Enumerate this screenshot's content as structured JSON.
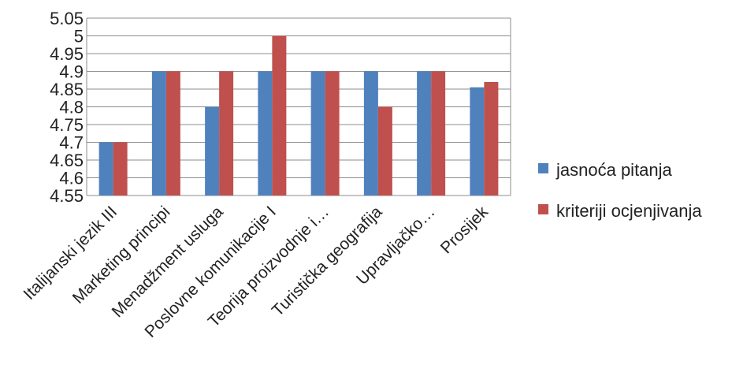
{
  "chart_data": {
    "type": "bar",
    "categories": [
      "Italijanski jezik III",
      "Marketing principi",
      "Menadžment usluga",
      "Poslovne komunikacije I",
      "Teorija proizvodnje i…",
      "Turistička geografija",
      "Upravljačko…",
      "Prosijek"
    ],
    "series": [
      {
        "name": "jasnoća pitanja",
        "color": "#4F81BD",
        "values": [
          4.7,
          4.9,
          4.8,
          4.9,
          4.9,
          4.9,
          4.9,
          4.855
        ]
      },
      {
        "name": "kriteriji ocjenjivanja",
        "color": "#C0504D",
        "values": [
          4.7,
          4.9,
          4.9,
          5.0,
          4.9,
          4.8,
          4.9,
          4.87
        ]
      }
    ],
    "ylim": [
      4.55,
      5.05
    ],
    "yticks": [
      "4.55",
      "4.6",
      "4.65",
      "4.7",
      "4.75",
      "4.8",
      "4.85",
      "4.9",
      "4.95",
      "5",
      "5.05"
    ],
    "grid": true,
    "legend_position": "right"
  }
}
